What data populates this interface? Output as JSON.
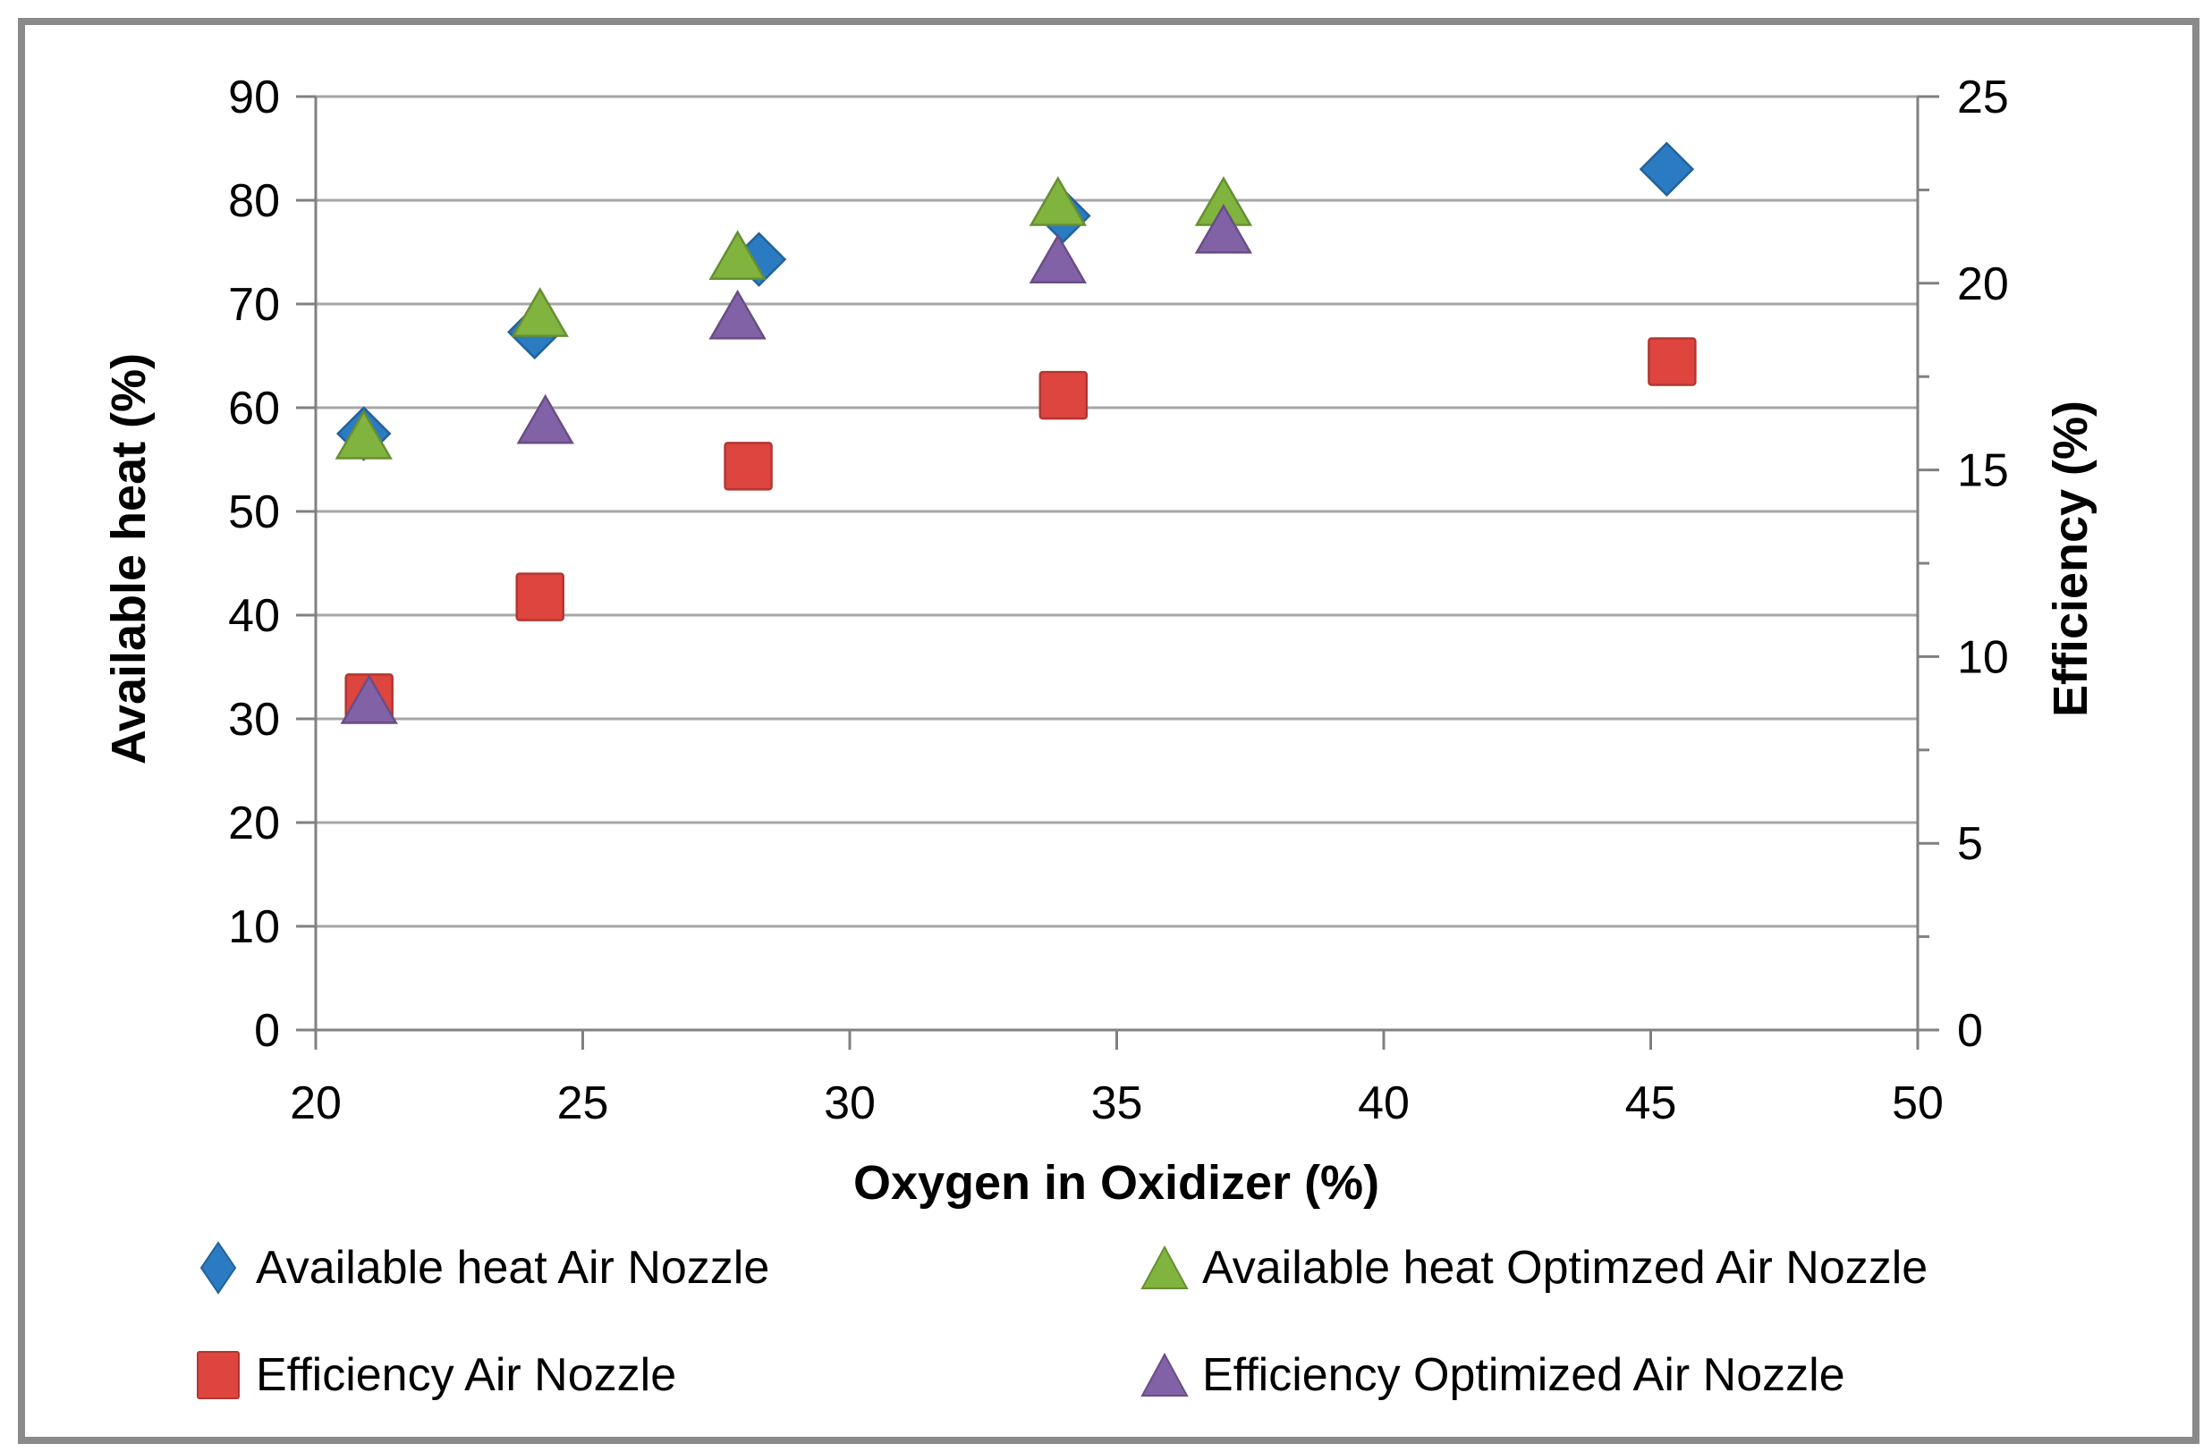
{
  "frame": {
    "border_color": "#8a8a8a",
    "background": "#ffffff"
  },
  "chart_data": {
    "type": "scatter",
    "title": "",
    "x_axis": {
      "label": "Oxygen in Oxidizer (%)",
      "min": 20,
      "max": 50,
      "tick_step": 5,
      "ticks": [
        20,
        25,
        30,
        35,
        40,
        45,
        50
      ]
    },
    "y_axis_left": {
      "label": "Available heat (%)",
      "min": 0,
      "max": 90,
      "tick_step": 10,
      "ticks": [
        0,
        10,
        20,
        30,
        40,
        50,
        60,
        70,
        80,
        90
      ]
    },
    "y_axis_right": {
      "label": "Efficiency (%)",
      "min": 0,
      "max": 25,
      "tick_step": 5,
      "ticks": [
        0,
        5,
        10,
        15,
        20,
        25
      ],
      "minor_tick_step": 2.5
    },
    "grid": "horizontal",
    "grid_color": "#a6a6a6",
    "axis_color": "#808080",
    "text_color": "#000000",
    "legend_position": "bottom",
    "series": [
      {
        "name": "Available heat Air Nozzle",
        "axis": "left",
        "marker": "diamond",
        "color": "#2b7bc2",
        "points": [
          [
            20.9,
            57.5
          ],
          [
            24.1,
            67.3
          ],
          [
            28.3,
            74.3
          ],
          [
            34.0,
            78.5
          ],
          [
            45.3,
            83.0
          ]
        ]
      },
      {
        "name": "Available heat Optimzed Air Nozzle",
        "axis": "left",
        "marker": "triangle",
        "color": "#81b33f",
        "points": [
          [
            20.9,
            57.2
          ],
          [
            24.2,
            69.0
          ],
          [
            27.9,
            74.5
          ],
          [
            33.9,
            79.7
          ],
          [
            37.0,
            79.7
          ]
        ]
      },
      {
        "name": "Efficiency Air Nozzle",
        "axis": "right",
        "marker": "square",
        "color": "#de453e",
        "points": [
          [
            21.0,
            8.9
          ],
          [
            24.2,
            11.6
          ],
          [
            28.1,
            15.1
          ],
          [
            34.0,
            17.0
          ],
          [
            45.4,
            17.9
          ]
        ]
      },
      {
        "name": "Efficiency Optimized Air Nozzle",
        "axis": "right",
        "marker": "triangle",
        "color": "#8262a6",
        "points": [
          [
            21.0,
            8.8
          ],
          [
            24.3,
            16.3
          ],
          [
            27.9,
            19.1
          ],
          [
            33.9,
            20.6
          ],
          [
            37.0,
            21.4
          ]
        ]
      }
    ]
  }
}
